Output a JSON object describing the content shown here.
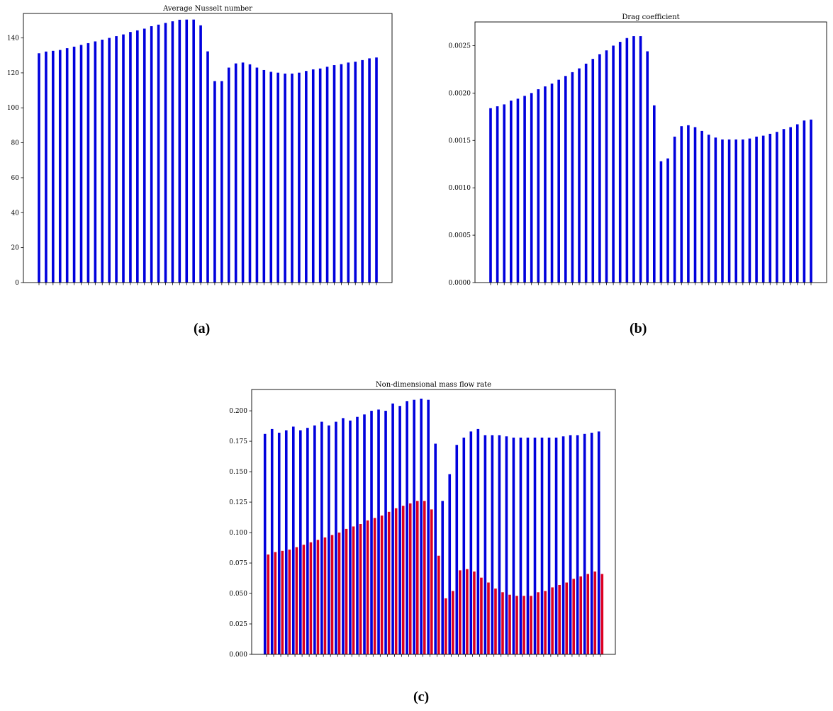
{
  "panel_labels": {
    "a": "(a)",
    "b": "(b)",
    "c": "(c)"
  },
  "colors": {
    "blue": "#0000dd",
    "red": "#dd0022",
    "axis": "#000000"
  },
  "chart_data": [
    {
      "id": "a",
      "type": "bar",
      "title": "Average Nusselt number",
      "xlabel": "",
      "ylabel": "",
      "ylim": [
        0,
        154
      ],
      "yticks": [
        0,
        20,
        40,
        60,
        80,
        100,
        120,
        140
      ],
      "ytick_labels": [
        "0",
        "20",
        "40",
        "60",
        "80",
        "100",
        "120",
        "140"
      ],
      "grid": false,
      "series": [
        {
          "color": "blue",
          "values": [
            131.2,
            132.2,
            132.6,
            133.1,
            134.1,
            135.0,
            136.0,
            137.0,
            138.0,
            139.0,
            140.0,
            141.0,
            142.0,
            143.4,
            144.3,
            145.3,
            146.7,
            147.6,
            148.6,
            149.5,
            150.4,
            150.5,
            150.5,
            147.2,
            132.3,
            115.3,
            115.3,
            123.0,
            125.4,
            125.9,
            124.9,
            123.0,
            121.6,
            120.6,
            120.1,
            119.6,
            119.6,
            120.1,
            121.1,
            122.0,
            122.5,
            123.5,
            124.4,
            125.0,
            125.9,
            126.4,
            127.3,
            128.3,
            128.8
          ]
        }
      ]
    },
    {
      "id": "b",
      "type": "bar",
      "title": "Drag coefficient",
      "xlabel": "",
      "ylabel": "",
      "ylim": [
        0,
        0.00275
      ],
      "yticks": [
        0,
        0.0005,
        0.001,
        0.0015,
        0.002,
        0.0025
      ],
      "ytick_labels": [
        "0.0000",
        "0.0005",
        "0.0010",
        "0.0015",
        "0.0020",
        "0.0025"
      ],
      "grid": false,
      "series": [
        {
          "color": "blue",
          "values": [
            0.00184,
            0.00186,
            0.00188,
            0.00192,
            0.00194,
            0.00197,
            0.002,
            0.00204,
            0.00207,
            0.0021,
            0.00214,
            0.00218,
            0.00222,
            0.00226,
            0.00231,
            0.00236,
            0.00241,
            0.00245,
            0.0025,
            0.00254,
            0.00258,
            0.0026,
            0.0026,
            0.00244,
            0.00187,
            0.00128,
            0.00131,
            0.00154,
            0.00165,
            0.00166,
            0.00164,
            0.0016,
            0.00156,
            0.00153,
            0.00151,
            0.00151,
            0.00151,
            0.00151,
            0.00152,
            0.00154,
            0.00155,
            0.00157,
            0.00159,
            0.00162,
            0.00164,
            0.00167,
            0.00171,
            0.00172
          ]
        }
      ]
    },
    {
      "id": "c",
      "type": "bar",
      "title": "Non-dimensional mass flow rate",
      "xlabel": "",
      "ylabel": "",
      "ylim": [
        0,
        0.2175
      ],
      "yticks": [
        0,
        0.025,
        0.05,
        0.075,
        0.1,
        0.125,
        0.15,
        0.175,
        0.2
      ],
      "ytick_labels": [
        "0.000",
        "0.025",
        "0.050",
        "0.075",
        "0.100",
        "0.125",
        "0.150",
        "0.175",
        "0.200"
      ],
      "grid": false,
      "series": [
        {
          "color": "blue",
          "values": [
            0.181,
            0.185,
            0.182,
            0.184,
            0.187,
            0.184,
            0.186,
            0.188,
            0.191,
            0.188,
            0.191,
            0.194,
            0.192,
            0.195,
            0.197,
            0.2,
            0.201,
            0.2,
            0.206,
            0.204,
            0.208,
            0.209,
            0.21,
            0.209,
            0.173,
            0.126,
            0.148,
            0.172,
            0.178,
            0.183,
            0.185,
            0.18,
            0.18,
            0.18,
            0.179,
            0.178,
            0.178,
            0.178,
            0.178,
            0.178,
            0.178,
            0.178,
            0.179,
            0.18,
            0.18,
            0.181,
            0.182,
            0.183
          ]
        },
        {
          "color": "red",
          "values": [
            0.082,
            0.084,
            0.085,
            0.086,
            0.088,
            0.09,
            0.092,
            0.094,
            0.096,
            0.098,
            0.1,
            0.103,
            0.105,
            0.107,
            0.11,
            0.112,
            0.114,
            0.117,
            0.12,
            0.122,
            0.124,
            0.126,
            0.126,
            0.119,
            0.081,
            0.046,
            0.052,
            0.069,
            0.07,
            0.068,
            0.063,
            0.059,
            0.054,
            0.051,
            0.049,
            0.048,
            0.048,
            0.048,
            0.051,
            0.052,
            0.055,
            0.057,
            0.059,
            0.062,
            0.064,
            0.066,
            0.068,
            0.066
          ]
        }
      ]
    }
  ]
}
